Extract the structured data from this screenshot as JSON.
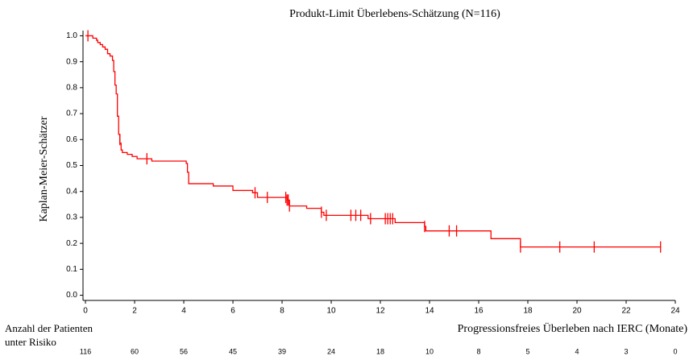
{
  "chart_data": {
    "type": "km",
    "title": "Produkt-Limit Überlebens-Schätzung (N=116)",
    "x_label": "Progressionsfreies Überleben nach IERC (Monate)",
    "y_label": "Kaplan-Meier-Schätzer",
    "color": "#ff0000",
    "x": [
      0,
      0.3,
      0.45,
      0.5,
      0.6,
      0.7,
      0.8,
      0.9,
      1.0,
      1.1,
      1.15,
      1.2,
      1.25,
      1.3,
      1.35,
      1.4,
      1.45,
      1.5,
      1.7,
      1.9,
      2.1,
      2.7,
      4.1,
      4.15,
      4.2,
      5.2,
      6.0,
      6.8,
      7.0,
      8.2,
      8.3,
      9.0,
      9.6,
      9.7,
      11.5,
      12.6,
      13.8,
      13.85,
      16.5,
      17.7,
      23.4
    ],
    "values": [
      1.0,
      0.991,
      0.983,
      0.974,
      0.966,
      0.957,
      0.948,
      0.931,
      0.922,
      0.905,
      0.862,
      0.81,
      0.776,
      0.69,
      0.62,
      0.586,
      0.56,
      0.55,
      0.543,
      0.535,
      0.526,
      0.517,
      0.508,
      0.474,
      0.43,
      0.421,
      0.404,
      0.395,
      0.377,
      0.367,
      0.344,
      0.335,
      0.32,
      0.308,
      0.295,
      0.28,
      0.265,
      0.248,
      0.218,
      0.186,
      0.186
    ],
    "censored": {
      "x": [
        0.1,
        1.4,
        2.5,
        6.9,
        7.4,
        8.15,
        8.2,
        8.25,
        8.3,
        9.6,
        9.8,
        10.8,
        11.0,
        11.2,
        11.6,
        12.2,
        12.3,
        12.4,
        12.5,
        13.8,
        14.8,
        15.1,
        17.7,
        19.3,
        20.7,
        23.4
      ],
      "values": [
        1.0,
        0.6,
        0.526,
        0.395,
        0.377,
        0.377,
        0.367,
        0.367,
        0.344,
        0.32,
        0.308,
        0.308,
        0.308,
        0.308,
        0.295,
        0.295,
        0.295,
        0.295,
        0.295,
        0.265,
        0.248,
        0.248,
        0.186,
        0.186,
        0.186,
        0.186
      ]
    },
    "xlim": [
      -0.1,
      24
    ],
    "xticks": [
      0,
      2,
      4,
      6,
      8,
      10,
      12,
      14,
      16,
      18,
      20,
      22,
      24
    ],
    "ylim": [
      -0.02,
      1.02
    ],
    "yticks": [
      {
        "value": 0,
        "label": "0.0"
      },
      0.1,
      0.2,
      0.3,
      0.4,
      0.5,
      0.6,
      0.7,
      0.8,
      0.9,
      {
        "value": 1,
        "label": "1.0"
      }
    ],
    "at_risk": {
      "label": [
        "Anzahl der Patienten",
        "unter Risiko"
      ],
      "values": [
        116,
        60,
        56,
        45,
        39,
        24,
        18,
        10,
        8,
        5,
        4,
        3,
        0
      ]
    }
  }
}
